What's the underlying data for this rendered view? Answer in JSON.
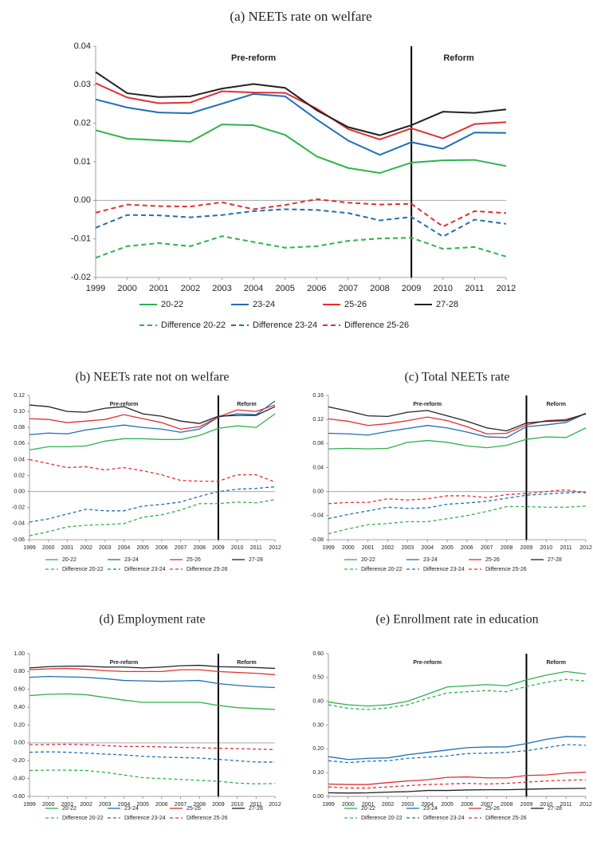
{
  "chart_data": [
    {
      "type": "line",
      "title": "(a) NEETs rate on welfare",
      "annotations": [
        "Pre-reform",
        "Reform"
      ],
      "reform_year": 2009,
      "x": [
        1999,
        2000,
        2001,
        2002,
        2003,
        2004,
        2005,
        2006,
        2007,
        2008,
        2009,
        2010,
        2011,
        2012
      ],
      "xlim": [
        1999,
        2012
      ],
      "xticks": [
        1999,
        2000,
        2001,
        2002,
        2003,
        2004,
        2005,
        2006,
        2007,
        2008,
        2009,
        2010,
        2011,
        2012
      ],
      "ylim": [
        -0.02,
        0.04
      ],
      "yticks": [
        -0.02,
        -0.01,
        {
          "value": 0,
          "label": "0.00"
        },
        0.01,
        0.02,
        0.03,
        0.04
      ],
      "series": [
        {
          "name": "20-22",
          "color": "#2db34a",
          "values": [
            0.0182,
            0.016,
            0.0156,
            0.0152,
            0.0197,
            0.0195,
            0.017,
            0.0114,
            0.0084,
            0.0071,
            0.0098,
            0.0104,
            0.0105,
            0.0089
          ]
        },
        {
          "name": "23-24",
          "color": "#1f6fb5",
          "values": [
            0.0262,
            0.0241,
            0.0228,
            0.0226,
            0.0251,
            0.0276,
            0.027,
            0.021,
            0.0155,
            0.0118,
            0.0151,
            0.0134,
            0.0176,
            0.0175
          ]
        },
        {
          "name": "25-26",
          "color": "#e03030",
          "values": [
            0.0304,
            0.0267,
            0.0252,
            0.0254,
            0.0283,
            0.028,
            0.0279,
            0.0238,
            0.0185,
            0.0158,
            0.0187,
            0.0161,
            0.0198,
            0.0203
          ]
        },
        {
          "name": "27-28",
          "color": "#222222",
          "values": [
            0.0333,
            0.0278,
            0.0268,
            0.027,
            0.029,
            0.0302,
            0.0292,
            0.0234,
            0.019,
            0.0169,
            0.0195,
            0.023,
            0.0227,
            0.0236
          ]
        },
        {
          "name": "Difference 20-22",
          "color": "#2db34a",
          "dashed": true,
          "values": [
            -0.0149,
            -0.0119,
            -0.0111,
            -0.0119,
            -0.0093,
            -0.0108,
            -0.0123,
            -0.0119,
            -0.0105,
            -0.0099,
            -0.0097,
            -0.0126,
            -0.0121,
            -0.0146
          ]
        },
        {
          "name": "Difference 23-24",
          "color": "#1f6fb5",
          "dashed": true,
          "values": [
            -0.0071,
            -0.0038,
            -0.0039,
            -0.0044,
            -0.0038,
            -0.0028,
            -0.0023,
            -0.0025,
            -0.0033,
            -0.0052,
            -0.0043,
            -0.0094,
            -0.005,
            -0.0061
          ]
        },
        {
          "name": "Difference 25-26",
          "color": "#e03030",
          "dashed": true,
          "values": [
            -0.0032,
            -0.0011,
            -0.0015,
            -0.0016,
            -0.0005,
            -0.0023,
            -0.0012,
            0.0003,
            -0.0006,
            -0.0011,
            -0.0009,
            -0.0068,
            -0.0028,
            -0.0033
          ]
        }
      ]
    },
    {
      "type": "line",
      "title": "(b) NEETs rate not on welfare",
      "annotations": [
        "Pre-reform",
        "Reform"
      ],
      "reform_year": 2009,
      "x": [
        1999,
        2000,
        2001,
        2002,
        2003,
        2004,
        2005,
        2006,
        2007,
        2008,
        2009,
        2010,
        2011,
        2012
      ],
      "xlim": [
        1999,
        2012
      ],
      "xticks": [
        1999,
        2000,
        2001,
        2002,
        2003,
        2004,
        2005,
        2006,
        2007,
        2008,
        2009,
        2010,
        2011,
        2012
      ],
      "ylim": [
        -0.06,
        0.12
      ],
      "yticks": [
        -0.06,
        -0.04,
        -0.02,
        {
          "value": 0,
          "label": "0.00"
        },
        0.02,
        0.04,
        0.06,
        0.08,
        {
          "value": 0.1,
          "label": "0.10"
        },
        0.12
      ],
      "series": [
        {
          "name": "20-22",
          "color": "#2db34a",
          "values": [
            0.052,
            0.056,
            0.056,
            0.057,
            0.063,
            0.066,
            0.066,
            0.065,
            0.065,
            0.07,
            0.079,
            0.082,
            0.08,
            0.097
          ]
        },
        {
          "name": "23-24",
          "color": "#1f6fb5",
          "values": [
            0.071,
            0.073,
            0.072,
            0.077,
            0.08,
            0.083,
            0.08,
            0.078,
            0.074,
            0.078,
            0.093,
            0.097,
            0.096,
            0.113
          ]
        },
        {
          "name": "25-26",
          "color": "#e03030",
          "values": [
            0.091,
            0.09,
            0.086,
            0.088,
            0.09,
            0.096,
            0.091,
            0.086,
            0.078,
            0.081,
            0.093,
            0.102,
            0.1,
            0.108
          ]
        },
        {
          "name": "27-28",
          "color": "#222222",
          "values": [
            0.108,
            0.106,
            0.1,
            0.099,
            0.104,
            0.106,
            0.097,
            0.094,
            0.088,
            0.085,
            0.094,
            0.095,
            0.095,
            0.106
          ]
        },
        {
          "name": "Difference 20-22",
          "color": "#2db34a",
          "dashed": true,
          "values": [
            -0.055,
            -0.05,
            -0.044,
            -0.042,
            -0.041,
            -0.04,
            -0.032,
            -0.029,
            -0.023,
            -0.015,
            -0.015,
            -0.013,
            -0.014,
            -0.01
          ]
        },
        {
          "name": "Difference 23-24",
          "color": "#1f6fb5",
          "dashed": true,
          "values": [
            -0.038,
            -0.034,
            -0.028,
            -0.022,
            -0.024,
            -0.024,
            -0.018,
            -0.016,
            -0.013,
            -0.006,
            0,
            0.003,
            0.004,
            0.006
          ]
        },
        {
          "name": "Difference 25-26",
          "color": "#e03030",
          "dashed": true,
          "values": [
            0.04,
            0.035,
            0.03,
            0.031,
            0.027,
            0.03,
            0.026,
            0.021,
            0.014,
            0.013,
            0.013,
            0.021,
            0.021,
            0.012
          ]
        }
      ]
    },
    {
      "type": "line",
      "title": "(c) Total NEETs rate",
      "annotations": [
        "Pre-reform",
        "Reform"
      ],
      "reform_year": 2009,
      "x": [
        1999,
        2000,
        2001,
        2002,
        2003,
        2004,
        2005,
        2006,
        2007,
        2008,
        2009,
        2010,
        2011,
        2012
      ],
      "xlim": [
        1999,
        2012
      ],
      "xticks": [
        1999,
        2000,
        2001,
        2002,
        2003,
        2004,
        2005,
        2006,
        2007,
        2008,
        2009,
        2010,
        2011,
        2012
      ],
      "ylim": [
        -0.08,
        0.16
      ],
      "yticks": [
        -0.08,
        -0.04,
        {
          "value": 0,
          "label": "0.00"
        },
        0.04,
        0.08,
        0.12,
        0.16
      ],
      "series": [
        {
          "name": "20-22",
          "color": "#2db34a",
          "values": [
            0.071,
            0.072,
            0.071,
            0.072,
            0.082,
            0.085,
            0.082,
            0.076,
            0.073,
            0.077,
            0.087,
            0.091,
            0.09,
            0.106
          ]
        },
        {
          "name": "23-24",
          "color": "#1f6fb5",
          "values": [
            0.097,
            0.096,
            0.094,
            0.1,
            0.105,
            0.11,
            0.106,
            0.099,
            0.091,
            0.09,
            0.108,
            0.111,
            0.115,
            0.13
          ]
        },
        {
          "name": "25-26",
          "color": "#e03030",
          "values": [
            0.121,
            0.117,
            0.11,
            0.113,
            0.118,
            0.124,
            0.118,
            0.108,
            0.096,
            0.097,
            0.111,
            0.118,
            0.12,
            0.129
          ]
        },
        {
          "name": "27-28",
          "color": "#222222",
          "values": [
            0.141,
            0.134,
            0.126,
            0.125,
            0.132,
            0.135,
            0.126,
            0.117,
            0.106,
            0.101,
            0.114,
            0.117,
            0.118,
            0.13
          ]
        },
        {
          "name": "Difference 20-22",
          "color": "#2db34a",
          "dashed": true,
          "values": [
            -0.07,
            -0.062,
            -0.055,
            -0.053,
            -0.05,
            -0.05,
            -0.045,
            -0.04,
            -0.033,
            -0.025,
            -0.025,
            -0.026,
            -0.026,
            -0.024
          ]
        },
        {
          "name": "Difference 23-24",
          "color": "#1f6fb5",
          "dashed": true,
          "values": [
            -0.045,
            -0.038,
            -0.032,
            -0.026,
            -0.028,
            -0.027,
            -0.021,
            -0.019,
            -0.016,
            -0.011,
            -0.006,
            -0.004,
            -0.002,
            -0.001
          ]
        },
        {
          "name": "Difference 25-26",
          "color": "#e03030",
          "dashed": true,
          "values": [
            -0.02,
            -0.018,
            -0.018,
            -0.012,
            -0.014,
            -0.012,
            -0.007,
            -0.007,
            -0.01,
            -0.005,
            -0.003,
            0,
            0.003,
            -0.002
          ]
        }
      ]
    },
    {
      "type": "line",
      "title": "(d) Employment rate",
      "annotations": [
        "Pre-reform",
        "Reform"
      ],
      "reform_year": 2009,
      "x": [
        1999,
        2000,
        2001,
        2002,
        2003,
        2004,
        2005,
        2006,
        2007,
        2008,
        2009,
        2010,
        2011,
        2012
      ],
      "xlim": [
        1999,
        2012
      ],
      "xticks": [
        1999,
        2000,
        2001,
        2002,
        2003,
        2004,
        2005,
        2006,
        2007,
        2008,
        2009,
        2010,
        2011,
        2012
      ],
      "ylim": [
        -0.6,
        1
      ],
      "yticks": [
        {
          "value": -0.6,
          "label": "-0.60"
        },
        {
          "value": -0.4,
          "label": "-0.40"
        },
        {
          "value": -0.2,
          "label": "-0.20"
        },
        {
          "value": 0,
          "label": "0.00"
        },
        {
          "value": 0.2,
          "label": "0.20"
        },
        {
          "value": 0.4,
          "label": "0.40"
        },
        {
          "value": 0.6,
          "label": "0.60"
        },
        {
          "value": 0.8,
          "label": "0.80"
        },
        {
          "value": 1,
          "label": "1.00"
        }
      ],
      "series": [
        {
          "name": "20-22",
          "color": "#2db34a",
          "values": [
            0.53,
            0.545,
            0.55,
            0.54,
            0.51,
            0.48,
            0.455,
            0.455,
            0.455,
            0.455,
            0.42,
            0.395,
            0.385,
            0.375
          ]
        },
        {
          "name": "23-24",
          "color": "#1f6fb5",
          "values": [
            0.735,
            0.745,
            0.74,
            0.735,
            0.72,
            0.7,
            0.695,
            0.69,
            0.695,
            0.7,
            0.665,
            0.645,
            0.63,
            0.62
          ]
        },
        {
          "name": "25-26",
          "color": "#e03030",
          "values": [
            0.82,
            0.83,
            0.835,
            0.825,
            0.81,
            0.8,
            0.8,
            0.8,
            0.82,
            0.82,
            0.8,
            0.79,
            0.78,
            0.765
          ]
        },
        {
          "name": "27-28",
          "color": "#222222",
          "values": [
            0.84,
            0.855,
            0.86,
            0.86,
            0.85,
            0.85,
            0.84,
            0.85,
            0.865,
            0.87,
            0.855,
            0.85,
            0.845,
            0.835
          ]
        },
        {
          "name": "Difference 20-22",
          "color": "#2db34a",
          "dashed": true,
          "values": [
            -0.31,
            -0.305,
            -0.305,
            -0.31,
            -0.33,
            -0.36,
            -0.39,
            -0.4,
            -0.41,
            -0.42,
            -0.43,
            -0.45,
            -0.46,
            -0.455
          ]
        },
        {
          "name": "Difference 23-24",
          "color": "#1f6fb5",
          "dashed": true,
          "values": [
            -0.105,
            -0.1,
            -0.105,
            -0.115,
            -0.125,
            -0.135,
            -0.15,
            -0.16,
            -0.165,
            -0.17,
            -0.185,
            -0.2,
            -0.215,
            -0.215
          ]
        },
        {
          "name": "Difference 25-26",
          "color": "#e03030",
          "dashed": true,
          "values": [
            -0.02,
            -0.02,
            -0.015,
            -0.02,
            -0.03,
            -0.04,
            -0.04,
            -0.045,
            -0.05,
            -0.055,
            -0.06,
            -0.065,
            -0.07,
            -0.075
          ]
        }
      ]
    },
    {
      "type": "line",
      "title": "(e) Enrollment rate in education",
      "annotations": [
        "Pre-reform",
        "Reform"
      ],
      "reform_year": 2009,
      "x": [
        1999,
        2000,
        2001,
        2002,
        2003,
        2004,
        2005,
        2006,
        2007,
        2008,
        2009,
        2010,
        2011,
        2012
      ],
      "xlim": [
        1999,
        2012
      ],
      "xticks": [
        1999,
        2000,
        2001,
        2002,
        2003,
        2004,
        2005,
        2006,
        2007,
        2008,
        2009,
        2010,
        2011,
        2012
      ],
      "ylim": [
        0,
        0.6
      ],
      "yticks": [
        {
          "value": 0,
          "label": "0.00"
        },
        {
          "value": 0.1,
          "label": "0.10"
        },
        {
          "value": 0.2,
          "label": "0.20"
        },
        {
          "value": 0.3,
          "label": "0.30"
        },
        {
          "value": 0.4,
          "label": "0.40"
        },
        {
          "value": 0.5,
          "label": "0.50"
        },
        {
          "value": 0.6,
          "label": "0.60"
        }
      ],
      "series": [
        {
          "name": "20-22",
          "color": "#2db34a",
          "values": [
            0.397,
            0.385,
            0.38,
            0.385,
            0.4,
            0.43,
            0.46,
            0.465,
            0.47,
            0.465,
            0.49,
            0.51,
            0.525,
            0.515
          ]
        },
        {
          "name": "23-24",
          "color": "#1f6fb5",
          "values": [
            0.167,
            0.155,
            0.16,
            0.162,
            0.175,
            0.185,
            0.195,
            0.205,
            0.208,
            0.208,
            0.222,
            0.24,
            0.252,
            0.25
          ]
        },
        {
          "name": "25-26",
          "color": "#e03030",
          "values": [
            0.052,
            0.05,
            0.05,
            0.058,
            0.065,
            0.07,
            0.08,
            0.082,
            0.078,
            0.078,
            0.088,
            0.09,
            0.098,
            0.102
          ]
        },
        {
          "name": "27-28",
          "color": "#222222",
          "values": [
            0.015,
            0.014,
            0.015,
            0.018,
            0.02,
            0.025,
            0.025,
            0.027,
            0.028,
            0.028,
            0.03,
            0.032,
            0.033,
            0.034
          ]
        },
        {
          "name": "Difference 20-22",
          "color": "#2db34a",
          "dashed": true,
          "values": [
            0.385,
            0.37,
            0.365,
            0.372,
            0.385,
            0.412,
            0.435,
            0.44,
            0.445,
            0.44,
            0.462,
            0.48,
            0.492,
            0.485
          ]
        },
        {
          "name": "Difference 23-24",
          "color": "#1f6fb5",
          "dashed": true,
          "values": [
            0.15,
            0.142,
            0.148,
            0.15,
            0.16,
            0.165,
            0.17,
            0.18,
            0.182,
            0.185,
            0.192,
            0.205,
            0.218,
            0.215
          ]
        },
        {
          "name": "Difference 25-26",
          "color": "#e03030",
          "dashed": true,
          "values": [
            0.04,
            0.035,
            0.035,
            0.04,
            0.045,
            0.05,
            0.052,
            0.055,
            0.052,
            0.055,
            0.06,
            0.065,
            0.068,
            0.07
          ]
        }
      ]
    }
  ]
}
